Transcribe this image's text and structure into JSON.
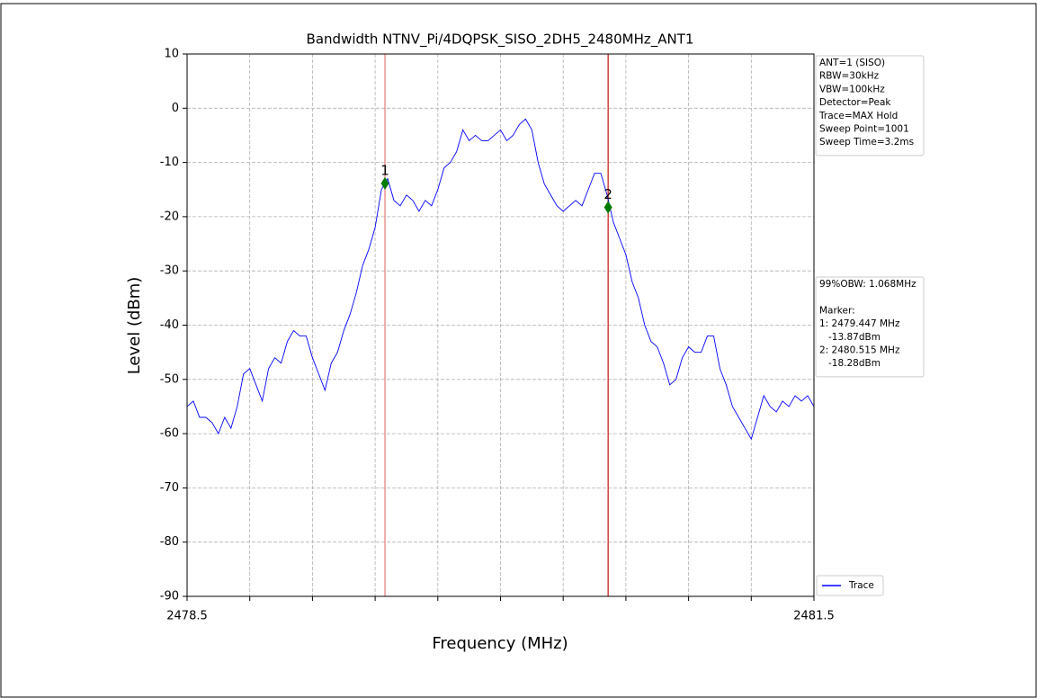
{
  "chart_data": {
    "type": "line",
    "title": "Bandwidth NTNV_Pi/4DQPSK_SISO_2DH5_2480MHz_ANT1",
    "xlabel": "Frequency (MHz)",
    "ylabel": "Level (dBm)",
    "x": [
      2478.5,
      2478.53,
      2478.56,
      2478.59,
      2478.62,
      2478.65,
      2478.68,
      2478.71,
      2478.74,
      2478.77,
      2478.8,
      2478.83,
      2478.86,
      2478.89,
      2478.92,
      2478.95,
      2478.98,
      2479.01,
      2479.04,
      2479.07,
      2479.1,
      2479.13,
      2479.16,
      2479.19,
      2479.22,
      2479.25,
      2479.28,
      2479.31,
      2479.34,
      2479.37,
      2479.4,
      2479.43,
      2479.46,
      2479.49,
      2479.52,
      2479.55,
      2479.58,
      2479.61,
      2479.64,
      2479.67,
      2479.7,
      2479.73,
      2479.76,
      2479.79,
      2479.82,
      2479.85,
      2479.88,
      2479.91,
      2479.94,
      2479.97,
      2480.0,
      2480.03,
      2480.06,
      2480.09,
      2480.12,
      2480.15,
      2480.18,
      2480.21,
      2480.24,
      2480.27,
      2480.3,
      2480.33,
      2480.36,
      2480.39,
      2480.42,
      2480.45,
      2480.48,
      2480.51,
      2480.54,
      2480.57,
      2480.6,
      2480.63,
      2480.66,
      2480.69,
      2480.72,
      2480.75,
      2480.78,
      2480.81,
      2480.84,
      2480.87,
      2480.9,
      2480.93,
      2480.96,
      2480.99,
      2481.02,
      2481.05,
      2481.08,
      2481.11,
      2481.14,
      2481.17,
      2481.2,
      2481.23,
      2481.26,
      2481.29,
      2481.32,
      2481.35,
      2481.38,
      2481.41,
      2481.44,
      2481.47,
      2481.5
    ],
    "series": [
      {
        "name": "Trace",
        "color": "#0000ff",
        "values": [
          -55,
          -54,
          -57,
          -57,
          -58,
          -60,
          -57,
          -59,
          -55,
          -49,
          -48,
          -51,
          -54,
          -48,
          -46,
          -47,
          -43,
          -41,
          -42,
          -42,
          -46,
          -49,
          -52,
          -47,
          -45,
          -41,
          -38,
          -34,
          -29,
          -26,
          -22,
          -15,
          -13,
          -17,
          -18,
          -16,
          -17,
          -19,
          -17,
          -18,
          -15,
          -11,
          -10,
          -8,
          -4,
          -6,
          -5,
          -6,
          -6,
          -5,
          -4,
          -6,
          -5,
          -3,
          -2,
          -4,
          -10,
          -14,
          -16,
          -18,
          -19,
          -18,
          -17,
          -18,
          -15,
          -12,
          -12,
          -16,
          -21,
          -24,
          -27,
          -32,
          -35,
          -40,
          -43,
          -44,
          -47,
          -51,
          -50,
          -46,
          -44,
          -45,
          -45,
          -42,
          -42,
          -48,
          -51,
          -55,
          -57,
          -59,
          -61,
          -57,
          -53,
          -55,
          -56,
          -54,
          -55,
          -53,
          -54,
          -53,
          -55
        ]
      }
    ],
    "xlim": [
      2478.5,
      2481.5
    ],
    "ylim": [
      -90,
      10
    ],
    "xticks": [
      2478.5,
      2481.5
    ],
    "xminor_ticks": [
      2478.8,
      2479.1,
      2479.4,
      2479.7,
      2480.0,
      2480.3,
      2480.6,
      2480.9,
      2481.2
    ],
    "yticks": [
      10,
      0,
      -10,
      -20,
      -30,
      -40,
      -50,
      -60,
      -70,
      -80,
      -90
    ],
    "grid": true,
    "legend": "lower right",
    "markers": [
      {
        "label": "1",
        "x": 2479.447,
        "y": -13.87,
        "line_color": "#e8787a"
      },
      {
        "label": "2",
        "x": 2480.515,
        "y": -18.28,
        "line_color": "#cc1010"
      }
    ],
    "marker_color": "#007a00",
    "settings_text": [
      "ANT=1 (SISO)",
      "RBW=30kHz",
      "VBW=100kHz",
      "Detector=Peak",
      "Trace=MAX Hold",
      "Sweep Point=1001",
      "Sweep Time=3.2ms"
    ],
    "result_text": [
      "99%OBW: 1.068MHz",
      null,
      "Marker:",
      "1: 2479.447 MHz",
      "   -13.87dBm",
      "2: 2480.515 MHz",
      "   -18.28dBm"
    ]
  }
}
